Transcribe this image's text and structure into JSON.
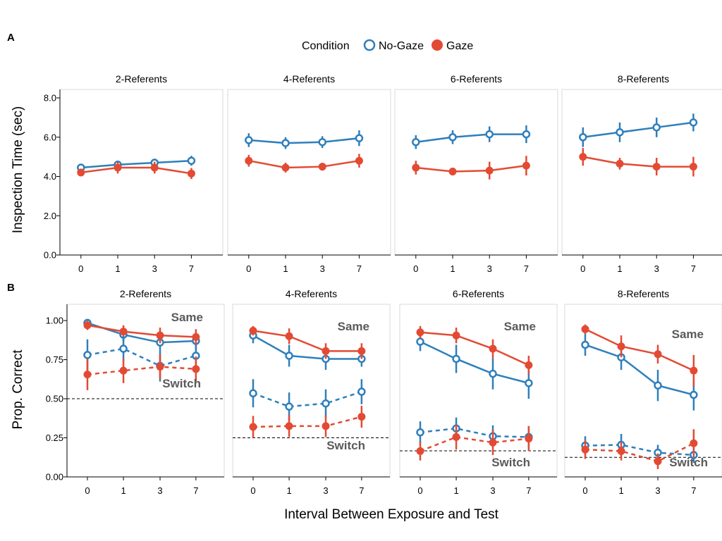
{
  "labels": {
    "panel_a": "A",
    "panel_b": "B",
    "legend_title": "Condition",
    "legend_no_gaze": "No-Gaze",
    "legend_gaze": "Gaze",
    "ylabel_a": "Inspection Time (sec)",
    "ylabel_b": "Prop. Correct",
    "xlabel": "Interval Between Exposure and Test",
    "same": "Same",
    "switch": "Switch"
  },
  "colors": {
    "no_gaze": "#2e7fbb",
    "gaze": "#e34a33"
  },
  "chart_data": [
    {
      "panel": "A",
      "type": "line",
      "ylabel": "Inspection Time (sec)",
      "xlabel": "Interval Between Exposure and Test",
      "ylim": [
        0,
        8
      ],
      "yticks": [
        "0.0",
        "2.0",
        "4.0",
        "6.0",
        "8.0"
      ],
      "x": [
        "0",
        "1",
        "3",
        "7"
      ],
      "legend": "top",
      "facets": [
        {
          "title": "2-Referents",
          "series": [
            {
              "name": "No-Gaze",
              "values": [
                4.45,
                4.6,
                4.7,
                4.8
              ],
              "err": [
                0.12,
                0.2,
                0.2,
                0.25
              ]
            },
            {
              "name": "Gaze",
              "values": [
                4.2,
                4.45,
                4.45,
                4.15
              ],
              "err": [
                0.12,
                0.3,
                0.3,
                0.28
              ]
            }
          ]
        },
        {
          "title": "4-Referents",
          "series": [
            {
              "name": "No-Gaze",
              "values": [
                5.85,
                5.7,
                5.75,
                5.95
              ],
              "err": [
                0.35,
                0.3,
                0.3,
                0.4
              ]
            },
            {
              "name": "Gaze",
              "values": [
                4.8,
                4.45,
                4.5,
                4.8
              ],
              "err": [
                0.3,
                0.25,
                0.2,
                0.35
              ]
            }
          ]
        },
        {
          "title": "6-Referents",
          "series": [
            {
              "name": "No-Gaze",
              "values": [
                5.75,
                6.0,
                6.15,
                6.15
              ],
              "err": [
                0.35,
                0.35,
                0.4,
                0.45
              ]
            },
            {
              "name": "Gaze",
              "values": [
                4.45,
                4.25,
                4.3,
                4.55
              ],
              "err": [
                0.35,
                0.2,
                0.45,
                0.5
              ]
            }
          ]
        },
        {
          "title": "8-Referents",
          "series": [
            {
              "name": "No-Gaze",
              "values": [
                6.0,
                6.25,
                6.5,
                6.75
              ],
              "err": [
                0.5,
                0.5,
                0.5,
                0.45
              ]
            },
            {
              "name": "Gaze",
              "values": [
                5.0,
                4.65,
                4.5,
                4.5
              ],
              "err": [
                0.45,
                0.3,
                0.45,
                0.5
              ]
            }
          ]
        }
      ]
    },
    {
      "panel": "B",
      "type": "line",
      "ylabel": "Prop. Correct",
      "xlabel": "Interval Between Exposure and Test",
      "ylim": [
        0,
        1.05
      ],
      "yticks": [
        "0.00",
        "0.25",
        "0.50",
        "0.75",
        "1.00"
      ],
      "x": [
        "0",
        "1",
        "3",
        "7"
      ],
      "line_styles": {
        "Same": "solid",
        "Switch": "dashed"
      },
      "facets": [
        {
          "title": "2-Referents",
          "chance": 0.5,
          "series": [
            {
              "name": "No-Gaze",
              "trial": "Same",
              "values": [
                0.985,
                0.91,
                0.86,
                0.87
              ],
              "err": [
                0.02,
                0.04,
                0.05,
                0.06
              ]
            },
            {
              "name": "Gaze",
              "trial": "Same",
              "values": [
                0.97,
                0.93,
                0.905,
                0.895
              ],
              "err": [
                0.03,
                0.04,
                0.05,
                0.05
              ]
            },
            {
              "name": "No-Gaze",
              "trial": "Switch",
              "values": [
                0.78,
                0.82,
                0.71,
                0.775
              ],
              "err": [
                0.1,
                0.08,
                0.1,
                0.07
              ]
            },
            {
              "name": "Gaze",
              "trial": "Switch",
              "values": [
                0.655,
                0.68,
                0.705,
                0.69
              ],
              "err": [
                0.1,
                0.08,
                0.08,
                0.08
              ]
            }
          ]
        },
        {
          "title": "4-Referents",
          "chance": 0.25,
          "series": [
            {
              "name": "No-Gaze",
              "trial": "Same",
              "values": [
                0.905,
                0.775,
                0.755,
                0.755
              ],
              "err": [
                0.05,
                0.07,
                0.07,
                0.05
              ]
            },
            {
              "name": "Gaze",
              "trial": "Same",
              "values": [
                0.935,
                0.9,
                0.805,
                0.805
              ],
              "err": [
                0.03,
                0.05,
                0.05,
                0.05
              ]
            },
            {
              "name": "No-Gaze",
              "trial": "Switch",
              "values": [
                0.535,
                0.45,
                0.47,
                0.545
              ],
              "err": [
                0.09,
                0.09,
                0.09,
                0.08
              ]
            },
            {
              "name": "Gaze",
              "trial": "Switch",
              "values": [
                0.32,
                0.325,
                0.325,
                0.385
              ],
              "err": [
                0.07,
                0.07,
                0.07,
                0.07
              ]
            }
          ]
        },
        {
          "title": "6-Referents",
          "chance": 0.167,
          "series": [
            {
              "name": "No-Gaze",
              "trial": "Same",
              "values": [
                0.865,
                0.755,
                0.66,
                0.6
              ],
              "err": [
                0.06,
                0.09,
                0.1,
                0.1
              ]
            },
            {
              "name": "Gaze",
              "trial": "Same",
              "values": [
                0.925,
                0.905,
                0.82,
                0.715
              ],
              "err": [
                0.04,
                0.05,
                0.06,
                0.06
              ]
            },
            {
              "name": "No-Gaze",
              "trial": "Switch",
              "values": [
                0.285,
                0.31,
                0.26,
                0.255
              ],
              "err": [
                0.07,
                0.07,
                0.07,
                0.07
              ]
            },
            {
              "name": "Gaze",
              "trial": "Switch",
              "values": [
                0.165,
                0.255,
                0.22,
                0.245
              ],
              "err": [
                0.06,
                0.08,
                0.08,
                0.08
              ]
            }
          ]
        },
        {
          "title": "8-Referents",
          "chance": 0.125,
          "series": [
            {
              "name": "No-Gaze",
              "trial": "Same",
              "values": [
                0.845,
                0.765,
                0.585,
                0.525
              ],
              "err": [
                0.07,
                0.08,
                0.1,
                0.1
              ]
            },
            {
              "name": "Gaze",
              "trial": "Same",
              "values": [
                0.945,
                0.835,
                0.785,
                0.68
              ],
              "err": [
                0.03,
                0.07,
                0.06,
                0.1
              ]
            },
            {
              "name": "No-Gaze",
              "trial": "Switch",
              "values": [
                0.2,
                0.205,
                0.155,
                0.14
              ],
              "err": [
                0.06,
                0.07,
                0.05,
                0.05
              ]
            },
            {
              "name": "Gaze",
              "trial": "Switch",
              "values": [
                0.175,
                0.165,
                0.1,
                0.215
              ],
              "err": [
                0.06,
                0.06,
                0.05,
                0.09
              ]
            }
          ]
        }
      ]
    }
  ]
}
